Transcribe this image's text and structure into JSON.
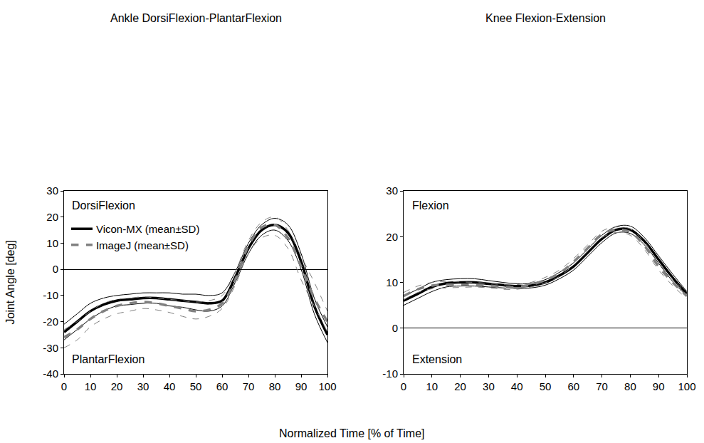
{
  "x_label": "Normalized Time [% of Time]",
  "y_label": "Joint Angle [deg]",
  "chart_data": [
    {
      "type": "line",
      "title": "Ankle DorsiFlexion-PlantarFlexion",
      "annotations": [
        "DorsiFlexion",
        "PlantarFlexion"
      ],
      "legend": "upper left",
      "grid": false,
      "x": [
        0,
        5,
        10,
        15,
        20,
        25,
        30,
        35,
        40,
        45,
        50,
        55,
        60,
        65,
        70,
        75,
        80,
        85,
        90,
        95,
        100
      ],
      "xlim": [
        0,
        100
      ],
      "xticks": [
        0,
        10,
        20,
        30,
        40,
        50,
        60,
        70,
        80,
        90,
        100
      ],
      "ylim": [
        -40,
        30
      ],
      "yticks": [
        -40,
        -30,
        -20,
        -10,
        0,
        10,
        20,
        30
      ],
      "series": [
        {
          "name": "Vicon-MX (mean±SD)",
          "color": "#000000",
          "line_style": "solid",
          "values": [
            -24,
            -20,
            -16,
            -13.5,
            -12,
            -11.5,
            -11,
            -11,
            -11.5,
            -12,
            -12.5,
            -13,
            -12,
            -3,
            8,
            15,
            17,
            14,
            3,
            -14,
            -25
          ],
          "sd_upper": [
            -21,
            -17,
            -13,
            -11,
            -10,
            -9.5,
            -9,
            -9,
            -9,
            -9.5,
            -9.5,
            -10,
            -9,
            -1,
            10,
            17,
            19.5,
            17,
            6,
            -11,
            -22
          ],
          "sd_lower": [
            -27,
            -23,
            -19,
            -16,
            -14,
            -13.5,
            -13,
            -13,
            -14,
            -14.5,
            -15.5,
            -16,
            -14,
            -5,
            6,
            13,
            15,
            11,
            0,
            -17,
            -28
          ]
        },
        {
          "name": "ImageJ (mean±SD)",
          "color": "#808080",
          "line_style": "dash",
          "values": [
            -26,
            -23,
            -19,
            -16,
            -14,
            -13,
            -12.5,
            -13,
            -14,
            -15,
            -16,
            -15.5,
            -13,
            -4,
            9,
            16,
            17,
            12,
            1,
            -11,
            -20
          ],
          "sd_upper": [
            -23,
            -20,
            -16,
            -13,
            -11.5,
            -11,
            -10.5,
            -11,
            -11.5,
            -12,
            -12.5,
            -12,
            -10,
            -1,
            11,
            18,
            20,
            15,
            5,
            -5,
            -16
          ],
          "sd_lower": [
            -30,
            -27,
            -22,
            -19,
            -17,
            -16,
            -15,
            -15.5,
            -16.5,
            -18,
            -19,
            -18,
            -15,
            -6,
            6,
            12,
            13,
            8,
            -4,
            -14,
            -24
          ]
        }
      ]
    },
    {
      "type": "line",
      "title": "Knee Flexion-Extension",
      "annotations": [
        "Flexion",
        "Extension"
      ],
      "grid": false,
      "x": [
        0,
        5,
        10,
        15,
        20,
        25,
        30,
        35,
        40,
        45,
        50,
        55,
        60,
        65,
        70,
        75,
        80,
        85,
        90,
        95,
        100
      ],
      "xlim": [
        0,
        100
      ],
      "xticks": [
        0,
        10,
        20,
        30,
        40,
        50,
        60,
        70,
        80,
        90,
        100
      ],
      "ylim": [
        -10,
        30
      ],
      "yticks": [
        -10,
        0,
        10,
        20,
        30
      ],
      "series": [
        {
          "name": "Vicon-MX (mean±SD)",
          "color": "#000000",
          "line_style": "solid",
          "values": [
            6,
            7.5,
            9,
            9.8,
            10,
            10,
            9.7,
            9.4,
            9.2,
            9.3,
            10,
            11.5,
            13.5,
            16.5,
            19.5,
            21.5,
            21.5,
            19,
            15,
            11,
            7.5
          ],
          "sd_upper": [
            7,
            8.5,
            10,
            10.6,
            10.8,
            10.8,
            10.4,
            10,
            9.7,
            9.8,
            10.6,
            12.2,
            14.3,
            17.3,
            20.3,
            22.2,
            22.3,
            19.8,
            15.8,
            11.8,
            8
          ],
          "sd_lower": [
            5,
            6.5,
            8,
            9,
            9.2,
            9.2,
            9,
            8.8,
            8.7,
            8.8,
            9.4,
            10.8,
            12.7,
            15.7,
            18.7,
            20.8,
            20.7,
            18.2,
            14.2,
            10.2,
            7
          ]
        },
        {
          "name": "ImageJ (mean±SD)",
          "color": "#808080",
          "line_style": "dash",
          "values": [
            7,
            8.5,
            9.3,
            9.5,
            9.5,
            9.5,
            9.3,
            9,
            9,
            9.5,
            10.5,
            12,
            14.5,
            17.5,
            20.5,
            21.5,
            21,
            18,
            13.5,
            10,
            7
          ],
          "sd_upper": [
            7.8,
            9.2,
            10,
            10.2,
            10.1,
            10,
            9.8,
            9.5,
            9.5,
            10,
            11.1,
            12.7,
            15.2,
            18.2,
            21.2,
            22.1,
            21.7,
            18.8,
            14.3,
            10.7,
            7.6
          ],
          "sd_lower": [
            6.2,
            7.8,
            8.6,
            8.8,
            8.9,
            9,
            8.8,
            8.5,
            8.5,
            9,
            9.9,
            11.3,
            13.8,
            16.8,
            19.8,
            20.9,
            20.3,
            17.2,
            12.7,
            9.3,
            6.4
          ]
        }
      ]
    }
  ]
}
